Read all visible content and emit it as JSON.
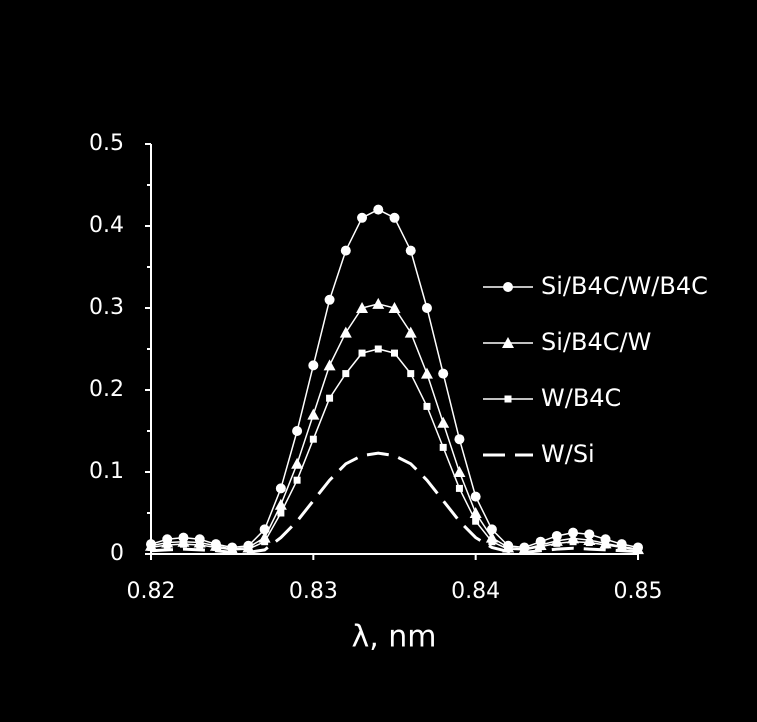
{
  "chart_data": {
    "type": "line",
    "xlabel": "λ, nm",
    "x": [
      0.82,
      0.821,
      0.822,
      0.823,
      0.824,
      0.825,
      0.826,
      0.827,
      0.828,
      0.829,
      0.83,
      0.831,
      0.832,
      0.833,
      0.834,
      0.835,
      0.836,
      0.837,
      0.838,
      0.839,
      0.84,
      0.841,
      0.842,
      0.843,
      0.844,
      0.845,
      0.846,
      0.847,
      0.848,
      0.849,
      0.85
    ],
    "series": [
      {
        "name": "Si/B4C/W/B4C",
        "color": "#ffffff",
        "marker": "circle",
        "dash": false,
        "values": [
          0.012,
          0.018,
          0.02,
          0.018,
          0.012,
          0.008,
          0.01,
          0.03,
          0.08,
          0.15,
          0.23,
          0.31,
          0.37,
          0.41,
          0.42,
          0.41,
          0.37,
          0.3,
          0.22,
          0.14,
          0.07,
          0.03,
          0.01,
          0.008,
          0.015,
          0.022,
          0.026,
          0.024,
          0.018,
          0.012,
          0.008
        ]
      },
      {
        "name": "Si/B4C/W",
        "color": "#ffffff",
        "marker": "triangle",
        "dash": false,
        "values": [
          0.01,
          0.014,
          0.015,
          0.014,
          0.01,
          0.006,
          0.008,
          0.02,
          0.06,
          0.11,
          0.17,
          0.23,
          0.27,
          0.3,
          0.305,
          0.3,
          0.27,
          0.22,
          0.16,
          0.1,
          0.05,
          0.02,
          0.008,
          0.006,
          0.011,
          0.016,
          0.019,
          0.017,
          0.013,
          0.009,
          0.006
        ]
      },
      {
        "name": "W/B4C",
        "color": "#ffffff",
        "marker": "square",
        "dash": false,
        "values": [
          0.008,
          0.011,
          0.012,
          0.011,
          0.008,
          0.005,
          0.006,
          0.015,
          0.05,
          0.09,
          0.14,
          0.19,
          0.22,
          0.245,
          0.25,
          0.245,
          0.22,
          0.18,
          0.13,
          0.08,
          0.04,
          0.015,
          0.006,
          0.005,
          0.009,
          0.013,
          0.015,
          0.014,
          0.011,
          0.008,
          0.005
        ]
      },
      {
        "name": "W/Si",
        "color": "#ffffff",
        "marker": "none",
        "dash": true,
        "values": [
          0.004,
          0.005,
          0.006,
          0.005,
          0.004,
          0.002,
          0.002,
          0.005,
          0.02,
          0.04,
          0.065,
          0.09,
          0.11,
          0.12,
          0.123,
          0.12,
          0.11,
          0.09,
          0.065,
          0.04,
          0.02,
          0.008,
          0.003,
          0.002,
          0.004,
          0.006,
          0.007,
          0.006,
          0.005,
          0.004,
          0.003
        ]
      }
    ],
    "xlim": [
      0.82,
      0.85
    ],
    "xticks": [
      0.82,
      0.83,
      0.84,
      0.85
    ],
    "ylim": [
      0,
      0.5
    ],
    "yticks": [
      0,
      0.1,
      0.2,
      0.3,
      0.4,
      0.5
    ],
    "grid": false,
    "legend": "right"
  }
}
